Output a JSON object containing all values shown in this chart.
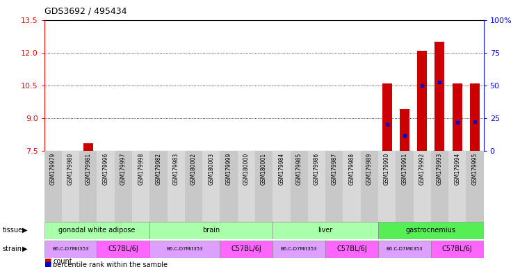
{
  "title": "GDS3692 / 495434",
  "samples": [
    "GSM179979",
    "GSM179980",
    "GSM179981",
    "GSM179996",
    "GSM179997",
    "GSM179998",
    "GSM179982",
    "GSM179983",
    "GSM180002",
    "GSM180003",
    "GSM179999",
    "GSM180000",
    "GSM180001",
    "GSM179984",
    "GSM179985",
    "GSM179986",
    "GSM179987",
    "GSM179988",
    "GSM179989",
    "GSM179990",
    "GSM179991",
    "GSM179992",
    "GSM179993",
    "GSM179994",
    "GSM179995"
  ],
  "count_values": [
    7.5,
    7.5,
    7.85,
    7.5,
    7.5,
    7.5,
    7.5,
    7.5,
    7.5,
    7.5,
    7.5,
    7.5,
    7.5,
    7.5,
    7.5,
    7.5,
    7.5,
    7.5,
    7.5,
    10.6,
    9.4,
    12.1,
    12.5,
    10.6,
    10.6
  ],
  "percentile_values": [
    null,
    null,
    null,
    null,
    null,
    null,
    null,
    null,
    null,
    null,
    null,
    null,
    null,
    null,
    null,
    null,
    null,
    null,
    null,
    8.7,
    8.2,
    10.5,
    10.65,
    8.8,
    8.85
  ],
  "tissues": [
    {
      "label": "gonadal white adipose",
      "start": 0,
      "end": 5,
      "color": "#aaffaa"
    },
    {
      "label": "brain",
      "start": 6,
      "end": 12,
      "color": "#aaffaa"
    },
    {
      "label": "liver",
      "start": 13,
      "end": 18,
      "color": "#aaffaa"
    },
    {
      "label": "gastrocnemius",
      "start": 19,
      "end": 24,
      "color": "#55ee55"
    }
  ],
  "strains": [
    {
      "label": "B6.C-D7Mit353",
      "start": 0,
      "end": 2,
      "color": "#dda0ff"
    },
    {
      "label": "C57BL/6J",
      "start": 3,
      "end": 5,
      "color": "#ff66ff"
    },
    {
      "label": "B6.C-D7Mit353",
      "start": 6,
      "end": 9,
      "color": "#dda0ff"
    },
    {
      "label": "C57BL/6J",
      "start": 10,
      "end": 12,
      "color": "#ff66ff"
    },
    {
      "label": "B6.C-D7Mit353",
      "start": 13,
      "end": 15,
      "color": "#dda0ff"
    },
    {
      "label": "C57BL/6J",
      "start": 16,
      "end": 18,
      "color": "#ff66ff"
    },
    {
      "label": "B6.C-D7Mit353",
      "start": 19,
      "end": 21,
      "color": "#dda0ff"
    },
    {
      "label": "C57BL/6J",
      "start": 22,
      "end": 24,
      "color": "#ff66ff"
    }
  ],
  "ylim": [
    7.5,
    13.5
  ],
  "yticks": [
    7.5,
    9.0,
    10.5,
    12.0,
    13.5
  ],
  "y2ticks": [
    0,
    25,
    50,
    75,
    100
  ],
  "bar_color": "#cc0000",
  "percentile_color": "#0000cc"
}
